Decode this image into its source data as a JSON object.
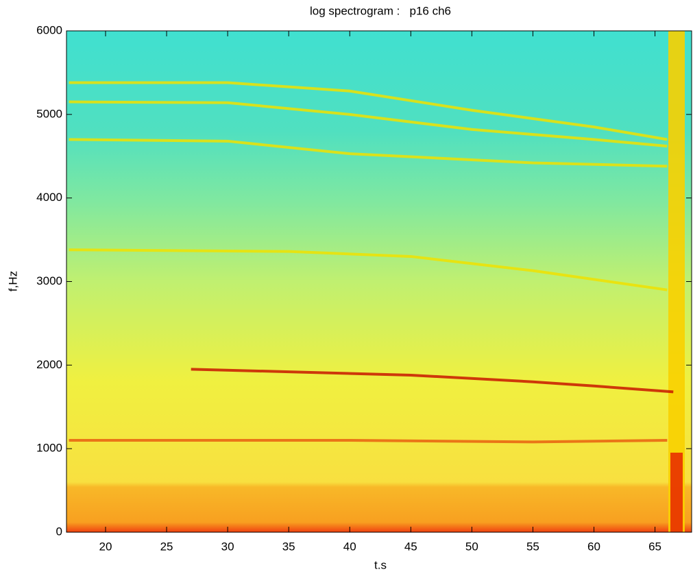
{
  "chart_data": {
    "type": "spectrogram",
    "title": "log spectrogram :   p16 ch6",
    "xlabel": "t.s",
    "ylabel": "f,Hz",
    "xlim": [
      16.8,
      68
    ],
    "ylim": [
      0,
      6000
    ],
    "xticks": [
      20,
      25,
      30,
      35,
      40,
      45,
      50,
      55,
      60,
      65
    ],
    "yticks": [
      0,
      1000,
      2000,
      3000,
      4000,
      5000,
      6000
    ],
    "series": [
      {
        "color": "#c81800",
        "x": [
          27,
          35,
          45,
          55,
          60,
          66.5
        ],
        "values": [
          1950,
          1920,
          1880,
          1800,
          1750,
          1680
        ]
      },
      {
        "color": "#e86010",
        "x": [
          17,
          40,
          55,
          66
        ],
        "values": [
          1100,
          1100,
          1080,
          1100
        ]
      },
      {
        "color": "#f0e000",
        "x": [
          17,
          35,
          45,
          55,
          66
        ],
        "values": [
          3380,
          3360,
          3300,
          3130,
          2900
        ]
      },
      {
        "color": "#f0e000",
        "x": [
          17,
          30,
          40,
          55,
          66
        ],
        "values": [
          4700,
          4680,
          4530,
          4420,
          4380
        ]
      },
      {
        "color": "#f0e000",
        "x": [
          17,
          30,
          40,
          50,
          60,
          66
        ],
        "values": [
          5150,
          5140,
          5000,
          4820,
          4700,
          4620
        ]
      },
      {
        "color": "#f0e000",
        "x": [
          17,
          30,
          40,
          50,
          60,
          66
        ],
        "values": [
          5380,
          5380,
          5280,
          5050,
          4850,
          4700
        ]
      }
    ]
  }
}
